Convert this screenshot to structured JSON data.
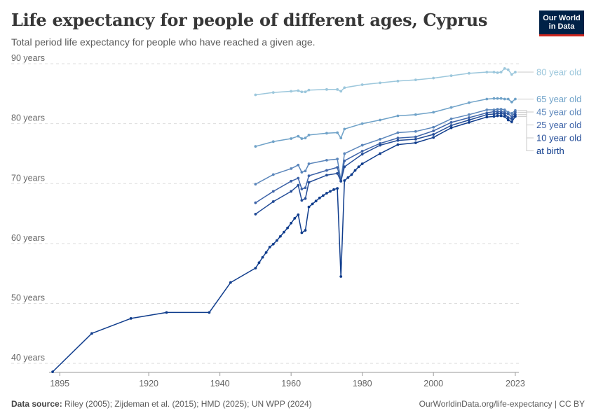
{
  "header": {
    "title": "Life expectancy for people of different ages, Cyprus",
    "subtitle": "Total period life expectancy for people who have reached a given age.",
    "logo_line1": "Our World",
    "logo_line2": "in Data"
  },
  "footer": {
    "source_label": "Data source:",
    "source_text": "Riley (2005); Zijdeman et al. (2015); HMD (2025); UN WPP (2024)",
    "url_text": "OurWorldinData.org/life-expectancy | CC BY"
  },
  "chart_data": {
    "type": "line",
    "title": "Life expectancy for people of different ages, Cyprus",
    "subtitle": "Total period life expectancy for people who have reached a given age.",
    "xlim": [
      1892,
      2024
    ],
    "ylim": [
      38.5,
      90
    ],
    "x_ticks": [
      1895,
      1920,
      1940,
      1960,
      1980,
      2000,
      2023
    ],
    "y_ticks": [
      40,
      50,
      60,
      70,
      80,
      90
    ],
    "y_tick_labels": [
      "40 years",
      "50 years",
      "60 years",
      "70 years",
      "80 years",
      "90 years"
    ],
    "grid": "horizontal-dashed",
    "legend_placement": "right",
    "series": [
      {
        "name": "80 year old",
        "color": "#9cc7dc",
        "x": [
          1950,
          1955,
          1960,
          1962,
          1963,
          1964,
          1965,
          1970,
          1973,
          1974,
          1975,
          1980,
          1985,
          1990,
          1995,
          2000,
          2005,
          2010,
          2015,
          2017,
          2018,
          2019,
          2020,
          2021,
          2022,
          2023
        ],
        "y": [
          84.8,
          85.2,
          85.4,
          85.5,
          85.3,
          85.3,
          85.6,
          85.7,
          85.7,
          85.4,
          86.0,
          86.5,
          86.8,
          87.1,
          87.3,
          87.6,
          88.0,
          88.4,
          88.6,
          88.6,
          88.5,
          88.6,
          89.2,
          89.0,
          88.2,
          88.6
        ]
      },
      {
        "name": "65 year old",
        "color": "#6fa2c8",
        "x": [
          1950,
          1955,
          1960,
          1962,
          1963,
          1964,
          1965,
          1970,
          1973,
          1974,
          1975,
          1980,
          1985,
          1990,
          1995,
          2000,
          2005,
          2010,
          2015,
          2017,
          2018,
          2019,
          2020,
          2021,
          2022,
          2023
        ],
        "y": [
          76.2,
          77.0,
          77.5,
          77.9,
          77.5,
          77.6,
          78.1,
          78.4,
          78.5,
          77.6,
          79.1,
          80.0,
          80.6,
          81.3,
          81.5,
          81.9,
          82.7,
          83.5,
          84.1,
          84.2,
          84.2,
          84.2,
          84.1,
          84.1,
          83.6,
          84.1
        ]
      },
      {
        "name": "45 year old",
        "color": "#5b86bb",
        "x": [
          1950,
          1955,
          1960,
          1962,
          1963,
          1964,
          1965,
          1970,
          1973,
          1974,
          1975,
          1980,
          1985,
          1990,
          1995,
          2000,
          2005,
          2010,
          2015,
          2017,
          2018,
          2019,
          2020,
          2021,
          2022,
          2023
        ],
        "y": [
          69.9,
          71.5,
          72.5,
          73.1,
          71.9,
          72.1,
          73.3,
          73.9,
          74.1,
          70.5,
          75.0,
          76.4,
          77.4,
          78.5,
          78.7,
          79.4,
          80.8,
          81.5,
          82.3,
          82.3,
          82.4,
          82.4,
          82.3,
          81.9,
          81.7,
          82.2
        ]
      },
      {
        "name": "25 year old",
        "color": "#3d63a8",
        "x": [
          1950,
          1955,
          1960,
          1962,
          1963,
          1964,
          1965,
          1970,
          1973,
          1974,
          1975,
          1980,
          1985,
          1990,
          1995,
          2000,
          2005,
          2010,
          2015,
          2017,
          2018,
          2019,
          2020,
          2021,
          2022,
          2023
        ],
        "y": [
          66.8,
          68.7,
          70.4,
          70.9,
          69.1,
          69.3,
          71.3,
          72.2,
          72.7,
          70.4,
          73.8,
          75.4,
          76.7,
          77.6,
          77.8,
          78.8,
          80.2,
          81.0,
          81.8,
          82.0,
          82.0,
          82.0,
          81.9,
          81.6,
          81.2,
          81.9
        ]
      },
      {
        "name": "10 year old",
        "color": "#234c97",
        "x": [
          1950,
          1955,
          1960,
          1962,
          1963,
          1964,
          1965,
          1970,
          1973,
          1974,
          1975,
          1980,
          1985,
          1990,
          1995,
          2000,
          2005,
          2010,
          2015,
          2017,
          2018,
          2019,
          2020,
          2021,
          2022,
          2023
        ],
        "y": [
          64.9,
          67.0,
          68.7,
          69.7,
          67.2,
          67.5,
          70.2,
          71.4,
          71.7,
          70.4,
          72.8,
          74.9,
          76.4,
          77.2,
          77.4,
          78.2,
          79.7,
          80.6,
          81.5,
          81.6,
          81.7,
          81.7,
          81.6,
          81.0,
          80.8,
          81.5
        ]
      },
      {
        "name": "at birth",
        "color": "#0f3c8c",
        "x": [
          1893,
          1904,
          1915,
          1925,
          1937,
          1943,
          1950,
          1951,
          1952,
          1953,
          1954,
          1955,
          1956,
          1957,
          1958,
          1959,
          1960,
          1961,
          1962,
          1963,
          1964,
          1965,
          1966,
          1967,
          1968,
          1969,
          1970,
          1971,
          1972,
          1973,
          1974,
          1975,
          1976,
          1977,
          1978,
          1979,
          1980,
          1985,
          1990,
          1995,
          2000,
          2005,
          2010,
          2015,
          2017,
          2018,
          2019,
          2020,
          2021,
          2022,
          2023
        ],
        "y": [
          38.6,
          45.0,
          47.5,
          48.5,
          48.5,
          53.5,
          55.9,
          56.8,
          57.7,
          58.5,
          59.4,
          59.9,
          60.5,
          61.2,
          61.9,
          62.6,
          63.4,
          64.2,
          64.8,
          61.8,
          62.2,
          66.1,
          66.6,
          67.1,
          67.6,
          68.0,
          68.4,
          68.7,
          69.0,
          69.2,
          54.5,
          70.5,
          71.0,
          71.5,
          72.2,
          72.8,
          73.3,
          75.0,
          76.5,
          76.8,
          77.7,
          79.3,
          80.2,
          81.1,
          81.2,
          81.3,
          81.3,
          81.2,
          80.6,
          80.3,
          81.2
        ]
      }
    ]
  }
}
